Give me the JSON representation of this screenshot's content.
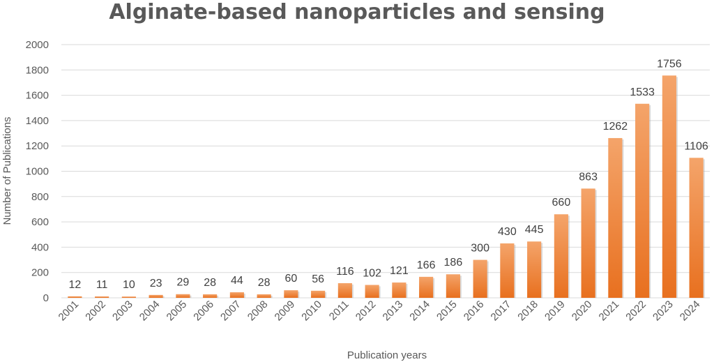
{
  "chart_data": {
    "type": "bar",
    "title": "Alginate-based nanoparticles and sensing",
    "xlabel": "Publication years",
    "ylabel": "Number of Publications",
    "ylim": [
      0,
      2000
    ],
    "yticks": [
      0,
      200,
      400,
      600,
      800,
      1000,
      1200,
      1400,
      1600,
      1800,
      2000
    ],
    "grid": true,
    "categories": [
      "2001",
      "2002",
      "2003",
      "2004",
      "2005",
      "2006",
      "2007",
      "2008",
      "2009",
      "2010",
      "2011",
      "2012",
      "2013",
      "2014",
      "2015",
      "2016",
      "2017",
      "2018",
      "2019",
      "2020",
      "2021",
      "2022",
      "2023",
      "2024"
    ],
    "values": [
      12,
      11,
      10,
      23,
      29,
      28,
      44,
      28,
      60,
      56,
      116,
      102,
      121,
      166,
      186,
      300,
      430,
      445,
      660,
      863,
      1262,
      1533,
      1756,
      1106
    ],
    "colors": {
      "bar_top": "#f4a46a",
      "bar_bottom": "#e8701f",
      "bar_shadow": "#b0b0b0"
    }
  }
}
